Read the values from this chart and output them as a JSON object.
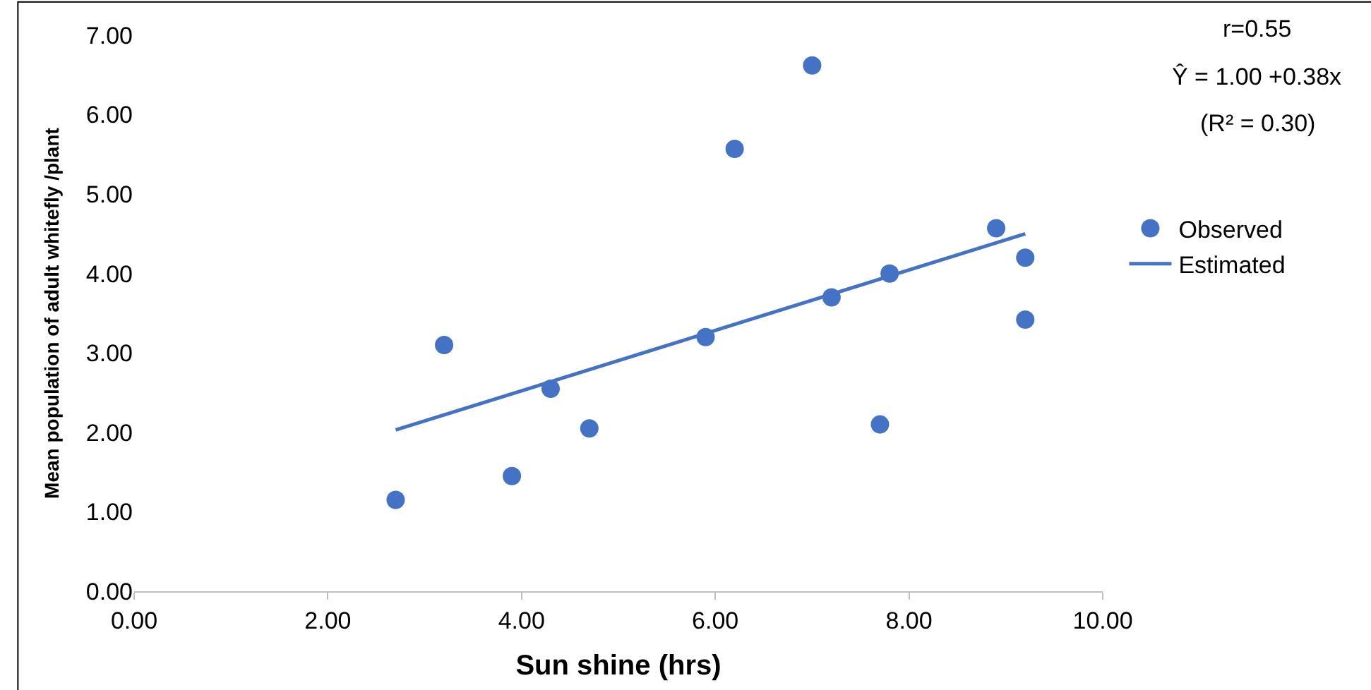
{
  "chart_data": {
    "type": "scatter",
    "xlabel": "Sun shine (hrs)",
    "ylabel": "Mean population of adult whitefly /plant",
    "x": [
      2.7,
      3.2,
      3.9,
      4.3,
      4.7,
      5.9,
      6.2,
      7.0,
      7.2,
      7.7,
      7.8,
      8.9,
      9.2,
      9.2
    ],
    "series": [
      {
        "name": "Observed",
        "color": "#4472c4",
        "marker": "circle",
        "values": [
          1.15,
          3.1,
          1.45,
          2.55,
          2.05,
          3.2,
          5.57,
          6.62,
          3.7,
          2.1,
          4.0,
          4.57,
          4.2,
          3.42
        ]
      },
      {
        "name": "Estimated",
        "color": "#4472c4",
        "type": "line",
        "marker": "none",
        "line_style": "solid",
        "x": [
          2.7,
          9.2
        ],
        "values": [
          2.03,
          4.5
        ]
      }
    ],
    "annotations": [
      "r=0.55",
      "Ŷ = 1.00 +0.38x",
      "(R² = 0.30)"
    ],
    "xlim": [
      0,
      10
    ],
    "ylim": [
      0,
      7
    ],
    "xticks": [
      {
        "value": 0,
        "label": "0.00"
      },
      {
        "value": 2,
        "label": "2.00"
      },
      {
        "value": 4,
        "label": "4.00"
      },
      {
        "value": 6,
        "label": "6.00"
      },
      {
        "value": 8,
        "label": "8.00"
      },
      {
        "value": 10,
        "label": "10.00"
      }
    ],
    "yticks": [
      {
        "value": 0,
        "label": "0.00"
      },
      {
        "value": 1,
        "label": "1.00"
      },
      {
        "value": 2,
        "label": "2.00"
      },
      {
        "value": 3,
        "label": "3.00"
      },
      {
        "value": 4,
        "label": "4.00"
      },
      {
        "value": 5,
        "label": "5.00"
      },
      {
        "value": 6,
        "label": "6.00"
      },
      {
        "value": 7,
        "label": "7.00"
      }
    ],
    "legend": "right"
  }
}
